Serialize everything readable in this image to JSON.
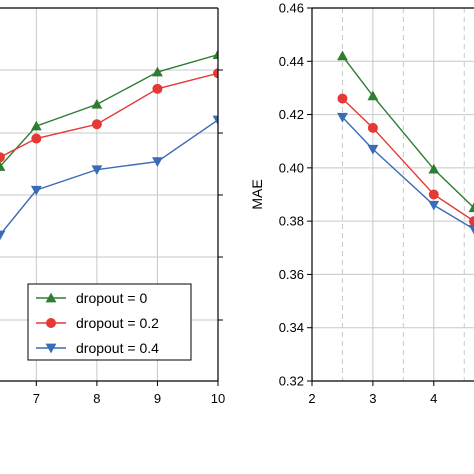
{
  "chart_data": [
    {
      "type": "line",
      "xlabel": "",
      "ylabel": "",
      "xlim": [
        6.4,
        10
      ],
      "ylim": [
        0,
        6
      ],
      "x_ticks": [
        7,
        8,
        9,
        10
      ],
      "x_tick_labels": [
        "7",
        "8",
        "9",
        "10"
      ],
      "y_tick_count_note": "",
      "grid": true,
      "legend": "bottom-right",
      "series": [
        {
          "name": "dropout = 0",
          "color": "#2e7d32",
          "marker": "triangle-up",
          "x": [
            6.4,
            7,
            8,
            9,
            10
          ],
          "y": [
            3.45,
            4.1,
            4.45,
            4.97,
            5.25
          ]
        },
        {
          "name": "dropout = 0.2",
          "color": "#e53935",
          "marker": "circle",
          "x": [
            6.4,
            7,
            8,
            9,
            10
          ],
          "y": [
            3.6,
            3.9,
            4.13,
            4.7,
            4.95
          ]
        },
        {
          "name": "dropout = 0.4",
          "color": "#3a6bb5",
          "marker": "triangle-down",
          "x": [
            6.4,
            7,
            8,
            9,
            10
          ],
          "y": [
            2.35,
            3.07,
            3.4,
            3.53,
            4.2
          ]
        }
      ]
    },
    {
      "type": "line",
      "xlabel": "",
      "ylabel": "MAE",
      "xlim": [
        2,
        4.66
      ],
      "ylim": [
        0.32,
        0.46
      ],
      "x_ticks": [
        2,
        3,
        4
      ],
      "x_tick_labels": [
        "2",
        "3",
        "4"
      ],
      "y_ticks": [
        0.32,
        0.34,
        0.36,
        0.38,
        0.4,
        0.42,
        0.44,
        0.46
      ],
      "y_tick_labels": [
        "0.32",
        "0.34",
        "0.36",
        "0.38",
        "0.40",
        "0.42",
        "0.44",
        "0.46"
      ],
      "x_grid_minor": [
        2.5,
        3.5,
        4.5
      ],
      "grid": true,
      "series": [
        {
          "name": "dropout = 0",
          "color": "#2e7d32",
          "marker": "triangle-up",
          "x": [
            2.5,
            3,
            4,
            4.66
          ],
          "y": [
            0.442,
            0.427,
            0.3995,
            0.385
          ]
        },
        {
          "name": "dropout = 0.2",
          "color": "#e53935",
          "marker": "circle",
          "x": [
            2.5,
            3,
            4,
            4.66
          ],
          "y": [
            0.426,
            0.415,
            0.39,
            0.38
          ]
        },
        {
          "name": "dropout = 0.4",
          "color": "#3a6bb5",
          "marker": "triangle-down",
          "x": [
            2.5,
            3,
            4,
            4.66
          ],
          "y": [
            0.419,
            0.407,
            0.386,
            0.377
          ]
        }
      ]
    }
  ]
}
